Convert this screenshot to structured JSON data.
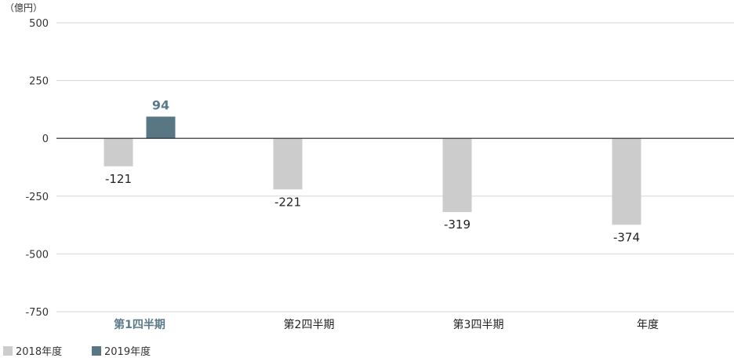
{
  "chart_data": {
    "type": "bar",
    "unit_label": "（億円）",
    "categories": [
      "第1四半期",
      "第2四半期",
      "第3四半期",
      "年度"
    ],
    "highlight_category_index": 0,
    "series": [
      {
        "name": "2018年度",
        "color": "#cccccc",
        "values": [
          -121,
          -221,
          -319,
          -374
        ]
      },
      {
        "name": "2019年度",
        "color": "#587684",
        "values": [
          94,
          null,
          null,
          null
        ]
      }
    ],
    "yticks": [
      500,
      250,
      0,
      -250,
      -500,
      -750
    ],
    "ylim": [
      -750,
      500
    ],
    "grid": true,
    "legend_position": "bottom-left"
  }
}
